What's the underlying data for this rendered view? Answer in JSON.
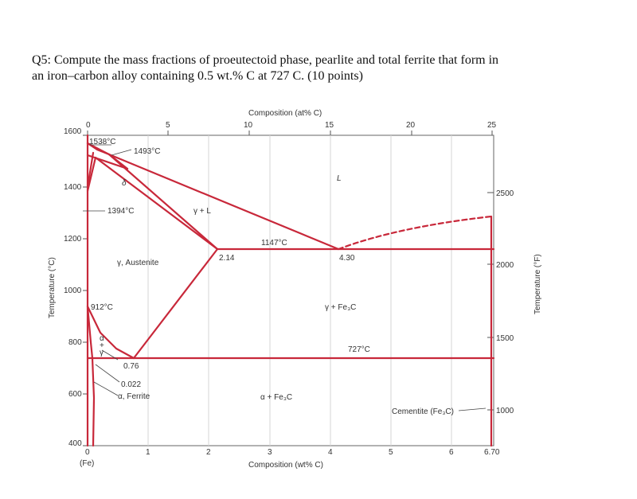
{
  "question": {
    "line1": "Q5: Compute the mass fractions of proeutectoid phase, pearlite and total ferrite that form in",
    "line2": "an iron–carbon alloy containing 0.5 wt.% C at 727 C. (10 points)"
  },
  "diagram": {
    "top_axis_title": "Composition (at% C)",
    "top_ticks": [
      "0",
      "5",
      "10",
      "15",
      "20",
      "25"
    ],
    "bottom_axis_title": "Composition (wt% C)",
    "bottom_ticks": [
      "0",
      "1",
      "2",
      "3",
      "4",
      "5",
      "6",
      "6.70"
    ],
    "bottom_sub": "(Fe)",
    "left_axis_title": "Temperature (°C)",
    "left_ticks": [
      "1600",
      "1400",
      "1200",
      "1000",
      "800",
      "600",
      "400"
    ],
    "right_axis_title": "Temperature (°F)",
    "right_ticks": [
      "2500",
      "2000",
      "1500",
      "1000"
    ],
    "labels": {
      "t1538": "1538°C",
      "t1493": "1493°C",
      "delta": "δ",
      "t1394": "1394°C",
      "gamma_l": "γ + L",
      "liquid": "L",
      "t1147": "1147°C",
      "c214": "2.14",
      "c430": "4.30",
      "austenite": "γ, Austenite",
      "t912": "912°C",
      "gamma_fe3c": "γ + Fe₃C",
      "t727": "727°C",
      "alpha_gamma_a": "α",
      "alpha_gamma_plus": "+",
      "alpha_gamma_g": "γ",
      "c076": "0.76",
      "c0022": "0.022",
      "ferrite": "α, Ferrite",
      "alpha_fe3c": "α + Fe₃C",
      "cementite": "Cementite (Fe₃C)"
    },
    "colors": {
      "phase_lines": "#c8283a",
      "grid": "#d5d5d5"
    }
  }
}
